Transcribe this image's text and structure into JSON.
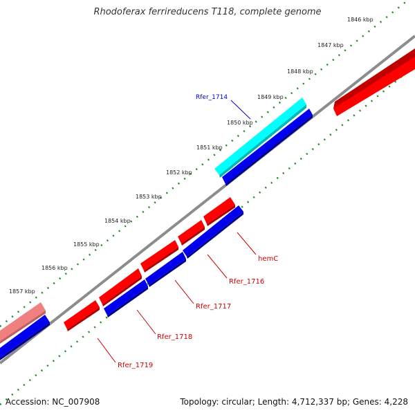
{
  "header": {
    "title": "Rhodoferax ferrireducens T118, complete genome"
  },
  "footer": {
    "accession": "Accession: NC_007908",
    "summary": "Topology: circular; Length: 4,712,337 bp; Genes: 4,228"
  },
  "ruler": {
    "ticks": [
      "1846 kbp",
      "1847 kbp",
      "1848 kbp",
      "1849 kbp",
      "1850 kbp",
      "1851 kbp",
      "1852 kbp",
      "1853 kbp",
      "1854 kbp",
      "1855 kbp",
      "1856 kbp",
      "1857 kbp"
    ]
  },
  "genes": [
    {
      "name": "Rfer_1714",
      "strand": "+",
      "color": "#00ffff",
      "label_color": "#0000cc"
    },
    {
      "name": "hemC",
      "strand": "-",
      "color": "#ff0000",
      "label_color": "#cc0000"
    },
    {
      "name": "Rfer_1716",
      "strand": "-",
      "color": "#ff0000",
      "label_color": "#cc0000"
    },
    {
      "name": "Rfer_1717",
      "strand": "-",
      "color": "#ff0000",
      "label_color": "#cc0000"
    },
    {
      "name": "Rfer_1718",
      "strand": "-",
      "color": "#ff0000",
      "label_color": "#cc0000"
    },
    {
      "name": "Rfer_1719",
      "strand": "-",
      "color": "#ff0000",
      "label_color": "#cc0000"
    }
  ],
  "colors": {
    "backbone": "#8c8c8c",
    "ruler": "#1a8a1a",
    "forward_gene": "#ff0000",
    "reverse_gene": "#0000ee",
    "highlight_gene": "#00ffff",
    "faded_gene": "#f08080"
  }
}
